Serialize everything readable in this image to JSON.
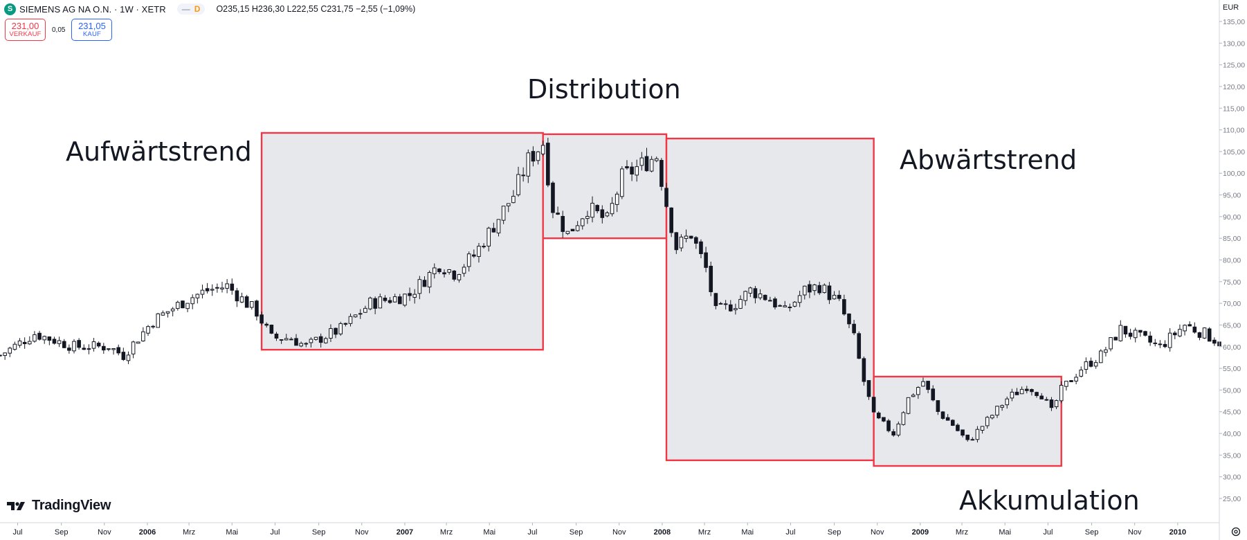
{
  "header": {
    "logo_letter": "S",
    "symbol": "SIEMENS AG NA O.N. · 1W · XETR",
    "pill_dash": "—",
    "pill_letter": "D",
    "ohlc": {
      "o_label": "O",
      "o": "235,15",
      "h_label": "H",
      "h": "236,30",
      "l_label": "L",
      "l": "222,55",
      "c_label": "C",
      "c": "231,75",
      "change": "−2,55 (−1,09%)"
    }
  },
  "trade": {
    "sell_price": "231,00",
    "sell_label": "VERKAUF",
    "spread": "0,05",
    "buy_price": "231,05",
    "buy_label": "KAUF"
  },
  "brand": {
    "name": "TradingView"
  },
  "colors": {
    "bg": "#ffffff",
    "zone_border": "#f23645",
    "zone_fill": "#e7e8ec",
    "candle": "#131722",
    "axis_text": "#787b86"
  },
  "chart_data": {
    "type": "candlestick",
    "currency": "EUR",
    "y_axis": {
      "min": 22,
      "max": 138,
      "ticks": [
        25,
        30,
        35,
        40,
        45,
        50,
        55,
        60,
        65,
        70,
        75,
        80,
        85,
        90,
        95,
        100,
        105,
        110,
        115,
        120,
        125,
        130,
        135
      ],
      "tick_labels": [
        "25,00",
        "30,00",
        "35,00",
        "40,00",
        "45,00",
        "50,00",
        "55,00",
        "60,00",
        "65,00",
        "70,00",
        "75,00",
        "80,00",
        "85,00",
        "90,00",
        "95,00",
        "100,00",
        "105,00",
        "110,00",
        "115,00",
        "120,00",
        "125,00",
        "130,00",
        "135,00"
      ]
    },
    "x_axis": {
      "start": "2005-06-06",
      "end": "2010-03-01",
      "ticks": [
        {
          "date": "2005-07-01",
          "label": "Jul",
          "bold": false
        },
        {
          "date": "2005-09-01",
          "label": "Sep",
          "bold": false
        },
        {
          "date": "2005-11-01",
          "label": "Nov",
          "bold": false
        },
        {
          "date": "2006-01-01",
          "label": "2006",
          "bold": true
        },
        {
          "date": "2006-03-01",
          "label": "Mrz",
          "bold": false
        },
        {
          "date": "2006-05-01",
          "label": "Mai",
          "bold": false
        },
        {
          "date": "2006-07-01",
          "label": "Jul",
          "bold": false
        },
        {
          "date": "2006-09-01",
          "label": "Sep",
          "bold": false
        },
        {
          "date": "2006-11-01",
          "label": "Nov",
          "bold": false
        },
        {
          "date": "2007-01-01",
          "label": "2007",
          "bold": true
        },
        {
          "date": "2007-03-01",
          "label": "Mrz",
          "bold": false
        },
        {
          "date": "2007-05-01",
          "label": "Mai",
          "bold": false
        },
        {
          "date": "2007-07-01",
          "label": "Jul",
          "bold": false
        },
        {
          "date": "2007-09-01",
          "label": "Sep",
          "bold": false
        },
        {
          "date": "2007-11-01",
          "label": "Nov",
          "bold": false
        },
        {
          "date": "2008-01-01",
          "label": "2008",
          "bold": true
        },
        {
          "date": "2008-03-01",
          "label": "Mrz",
          "bold": false
        },
        {
          "date": "2008-05-01",
          "label": "Mai",
          "bold": false
        },
        {
          "date": "2008-07-01",
          "label": "Jul",
          "bold": false
        },
        {
          "date": "2008-09-01",
          "label": "Sep",
          "bold": false
        },
        {
          "date": "2008-11-01",
          "label": "Nov",
          "bold": false
        },
        {
          "date": "2009-01-01",
          "label": "2009",
          "bold": true
        },
        {
          "date": "2009-03-01",
          "label": "Mrz",
          "bold": false
        },
        {
          "date": "2009-05-01",
          "label": "Mai",
          "bold": false
        },
        {
          "date": "2009-07-01",
          "label": "Jul",
          "bold": false
        },
        {
          "date": "2009-09-01",
          "label": "Sep",
          "bold": false
        },
        {
          "date": "2009-11-01",
          "label": "Nov",
          "bold": false
        },
        {
          "date": "2010-01-01",
          "label": "2010",
          "bold": true
        }
      ]
    },
    "price_anchors": [
      [
        "2005-06-06",
        58
      ],
      [
        "2005-07-25",
        63
      ],
      [
        "2005-09-19",
        60
      ],
      [
        "2005-11-07",
        60
      ],
      [
        "2005-11-28",
        58
      ],
      [
        "2006-01-09",
        66
      ],
      [
        "2006-02-27",
        71
      ],
      [
        "2006-03-27",
        73
      ],
      [
        "2006-04-24",
        74
      ],
      [
        "2006-05-15",
        71
      ],
      [
        "2006-06-05",
        68
      ],
      [
        "2006-06-26",
        62
      ],
      [
        "2006-07-24",
        62
      ],
      [
        "2006-08-14",
        60
      ],
      [
        "2006-09-04",
        62
      ],
      [
        "2006-10-02",
        64
      ],
      [
        "2006-11-13",
        70
      ],
      [
        "2007-01-08",
        72
      ],
      [
        "2007-02-19",
        79
      ],
      [
        "2007-03-12",
        77
      ],
      [
        "2007-04-09",
        81
      ],
      [
        "2007-05-07",
        88
      ],
      [
        "2007-06-04",
        95
      ],
      [
        "2007-06-25",
        103
      ],
      [
        "2007-07-16",
        107
      ],
      [
        "2007-07-30",
        92
      ],
      [
        "2007-08-20",
        86
      ],
      [
        "2007-09-17",
        92
      ],
      [
        "2007-10-15",
        89
      ],
      [
        "2007-11-05",
        99
      ],
      [
        "2007-12-03",
        102
      ],
      [
        "2007-12-24",
        104
      ],
      [
        "2008-01-07",
        93
      ],
      [
        "2008-01-21",
        83
      ],
      [
        "2008-02-11",
        86
      ],
      [
        "2008-03-03",
        78
      ],
      [
        "2008-03-17",
        68
      ],
      [
        "2008-04-14",
        70
      ],
      [
        "2008-05-05",
        73
      ],
      [
        "2008-06-02",
        71
      ],
      [
        "2008-06-23",
        68
      ],
      [
        "2008-07-21",
        73
      ],
      [
        "2008-08-11",
        74
      ],
      [
        "2008-09-08",
        70
      ],
      [
        "2008-09-29",
        62
      ],
      [
        "2008-10-13",
        52
      ],
      [
        "2008-10-27",
        44
      ],
      [
        "2008-11-24",
        40
      ],
      [
        "2008-12-15",
        48
      ],
      [
        "2009-01-05",
        52
      ],
      [
        "2009-01-26",
        45
      ],
      [
        "2009-02-16",
        42
      ],
      [
        "2009-03-09",
        38
      ],
      [
        "2009-04-06",
        43
      ],
      [
        "2009-05-04",
        48
      ],
      [
        "2009-06-01",
        51
      ],
      [
        "2009-06-22",
        49
      ],
      [
        "2009-07-06",
        45
      ],
      [
        "2009-07-20",
        50
      ],
      [
        "2009-08-17",
        55
      ],
      [
        "2009-09-14",
        58
      ],
      [
        "2009-10-12",
        64
      ],
      [
        "2009-11-09",
        62
      ],
      [
        "2009-12-07",
        60
      ],
      [
        "2010-01-11",
        65
      ],
      [
        "2010-02-08",
        63
      ],
      [
        "2010-03-01",
        61
      ]
    ],
    "zones": [
      {
        "start": "2006-06-12",
        "end": "2007-07-16",
        "low": 59.3,
        "high": 109.3
      },
      {
        "start": "2007-07-16",
        "end": "2008-01-07",
        "low": 85.0,
        "high": 109.0
      },
      {
        "start": "2008-01-07",
        "end": "2008-10-27",
        "low": 33.8,
        "high": 108.0
      },
      {
        "start": "2008-10-27",
        "end": "2009-07-20",
        "low": 32.5,
        "high": 53.1
      }
    ]
  },
  "annotations": [
    {
      "text": "Aufwärtstrend"
    },
    {
      "text": "Distribution"
    },
    {
      "text": "Abwärtstrend"
    },
    {
      "text": "Akkumulation"
    }
  ]
}
